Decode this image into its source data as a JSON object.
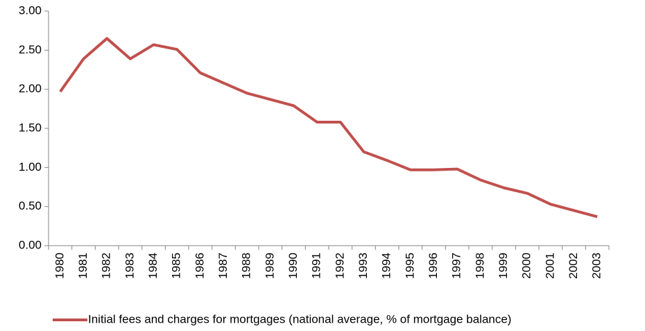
{
  "chart_data": {
    "type": "line",
    "categories": [
      "1980",
      "1981",
      "1982",
      "1983",
      "1984",
      "1985",
      "1986",
      "1987",
      "1988",
      "1989",
      "1990",
      "1991",
      "1992",
      "1993",
      "1994",
      "1995",
      "1996",
      "1997",
      "1998",
      "1999",
      "2000",
      "2001",
      "2002",
      "2003"
    ],
    "series": [
      {
        "name": "Initial fees and charges for mortgages (national average, % of mortgage balance)",
        "color": "#c0504d",
        "values": [
          1.97,
          2.39,
          2.65,
          2.39,
          2.57,
          2.51,
          2.21,
          2.08,
          1.95,
          1.87,
          1.79,
          1.58,
          1.58,
          1.2,
          1.09,
          0.97,
          0.97,
          0.98,
          0.84,
          0.74,
          0.67,
          0.53,
          0.45,
          0.37
        ]
      }
    ],
    "ylim": [
      0,
      3
    ],
    "yticks": [
      {
        "value": 0,
        "label": "0.00"
      },
      {
        "value": 0.5,
        "label": "0.50"
      },
      {
        "value": 1,
        "label": "1.00"
      },
      {
        "value": 1.5,
        "label": "1.50"
      },
      {
        "value": 2,
        "label": "2.00"
      },
      {
        "value": 2.5,
        "label": "2.50"
      },
      {
        "value": 3,
        "label": "3.00"
      }
    ],
    "legend": "bottom"
  }
}
